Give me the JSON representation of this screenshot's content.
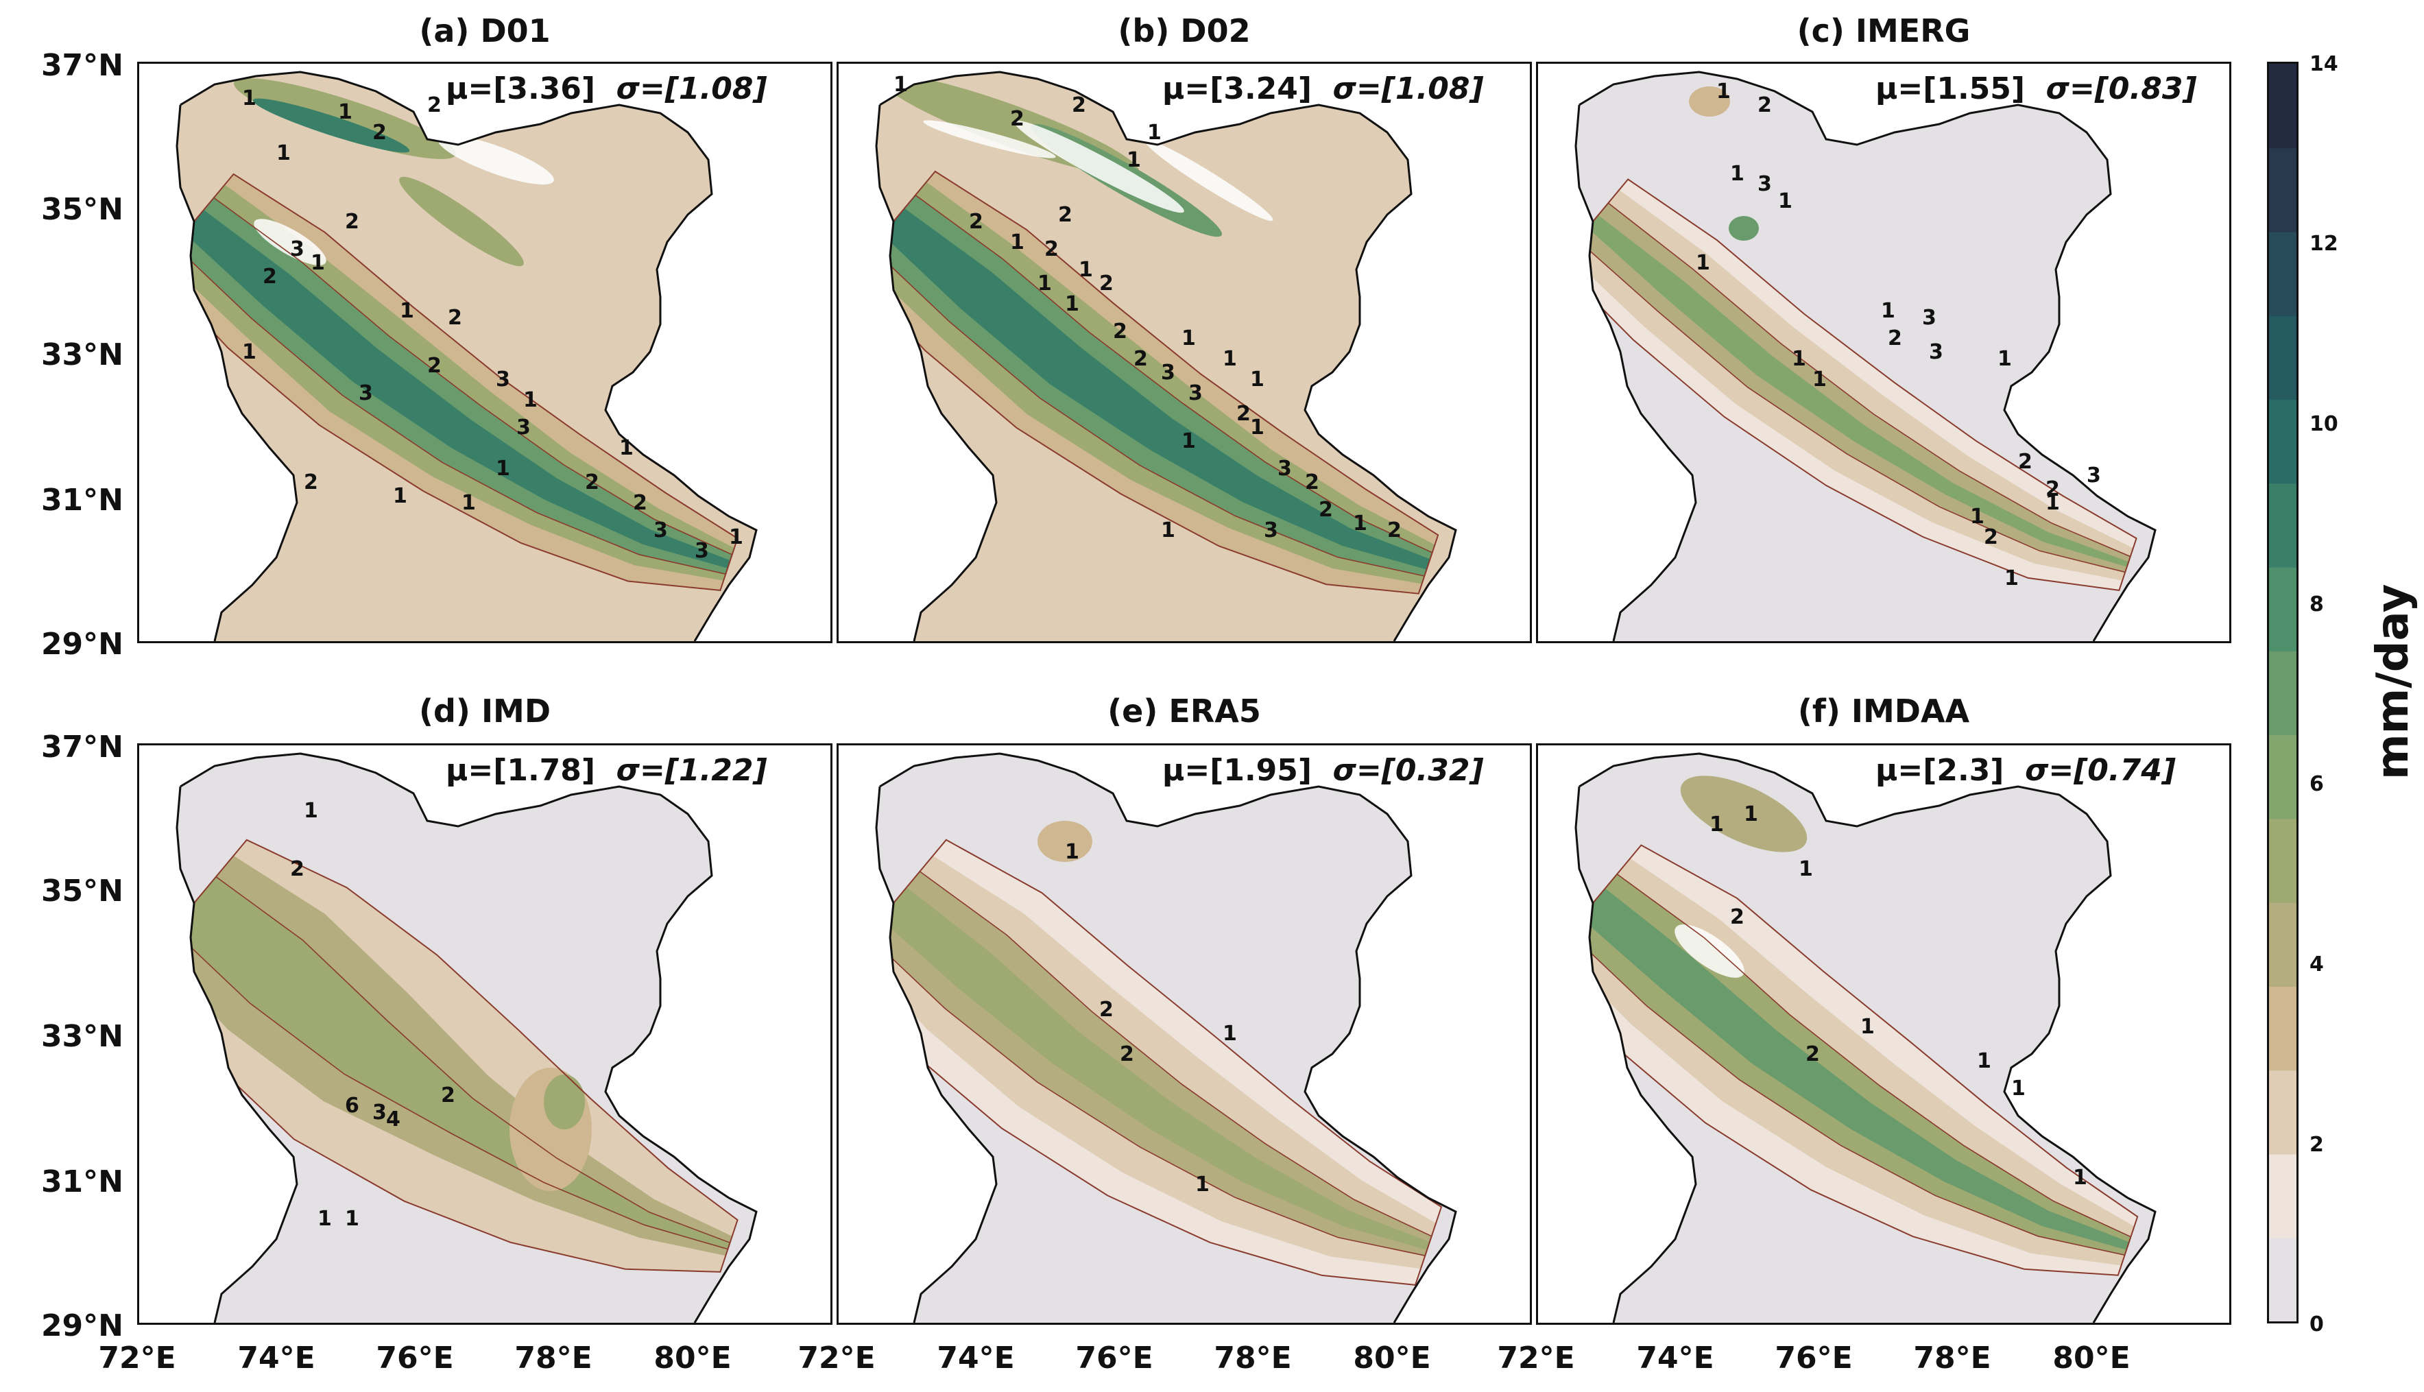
{
  "panels": [
    {
      "title": "(a) D01",
      "mu": "μ=[3.36]",
      "sigma": "σ=[1.08]",
      "style": "d01"
    },
    {
      "title": "(b) D02",
      "mu": "μ=[3.24]",
      "sigma": "σ=[1.08]",
      "style": "d02"
    },
    {
      "title": "(c) IMERG",
      "mu": "μ=[1.55]",
      "sigma": "σ=[0.83]",
      "style": "imerg"
    },
    {
      "title": "(d) IMD",
      "mu": "μ=[1.78]",
      "sigma": "σ=[1.22]",
      "style": "imd"
    },
    {
      "title": "(e) ERA5",
      "mu": "μ=[1.95]",
      "sigma": "σ=[0.32]",
      "style": "era5"
    },
    {
      "title": "(f) IMDAA",
      "mu": "μ=[2.3]",
      "sigma": "σ=[0.74]",
      "style": "imdaa"
    }
  ],
  "axes": {
    "lat_labels": [
      "37°N",
      "35°N",
      "33°N",
      "31°N",
      "29°N"
    ],
    "lon_labels": [
      "72°E",
      "74°E",
      "76°E",
      "78°E",
      "80°E"
    ],
    "lat_range": [
      29,
      37
    ],
    "lon_range": [
      72,
      82
    ]
  },
  "contour_labels": {
    "d01": [
      "1",
      "1",
      "2",
      "2",
      "1",
      "2",
      "3",
      "2",
      "1",
      "1",
      "2",
      "3",
      "2",
      "1",
      "3",
      "3",
      "1",
      "1",
      "1",
      "1",
      "2",
      "1",
      "2",
      "2",
      "3",
      "3",
      "1"
    ],
    "d02": [
      "1",
      "2",
      "2",
      "1",
      "1",
      "2",
      "1",
      "2",
      "2",
      "1",
      "2",
      "1",
      "1",
      "2",
      "1",
      "2",
      "3",
      "1",
      "1",
      "2",
      "3",
      "1",
      "1",
      "3",
      "2",
      "2",
      "1",
      "3",
      "2",
      "1"
    ],
    "imerg": [
      "1",
      "2",
      "1",
      "3",
      "1",
      "1",
      "1",
      "3",
      "2",
      "3",
      "1",
      "1",
      "1",
      "2",
      "2",
      "3",
      "1",
      "2",
      "1",
      "1"
    ],
    "imd": [
      "1",
      "2",
      "1",
      "1",
      "2",
      "6",
      "3",
      "4"
    ],
    "era5": [
      "1",
      "2",
      "2",
      "1",
      "1"
    ],
    "imdaa": [
      "1",
      "1",
      "1",
      "2",
      "2",
      "1",
      "1",
      "1",
      "1"
    ]
  },
  "colorbar": {
    "label": "mm/day",
    "ticks": [
      "14",
      "12",
      "10",
      "8",
      "6",
      "4",
      "2",
      "0"
    ],
    "min": 0,
    "max": 14,
    "colors": [
      "#e3e1e3",
      "#eee4dc",
      "#dfcdb5",
      "#cfb792",
      "#b4ad7f",
      "#9eaa72",
      "#83a66e",
      "#6a9b6c",
      "#4e8f6c",
      "#3a8068",
      "#2a6d66",
      "#255b60",
      "#274b58",
      "#28394d",
      "#232b40"
    ]
  }
}
